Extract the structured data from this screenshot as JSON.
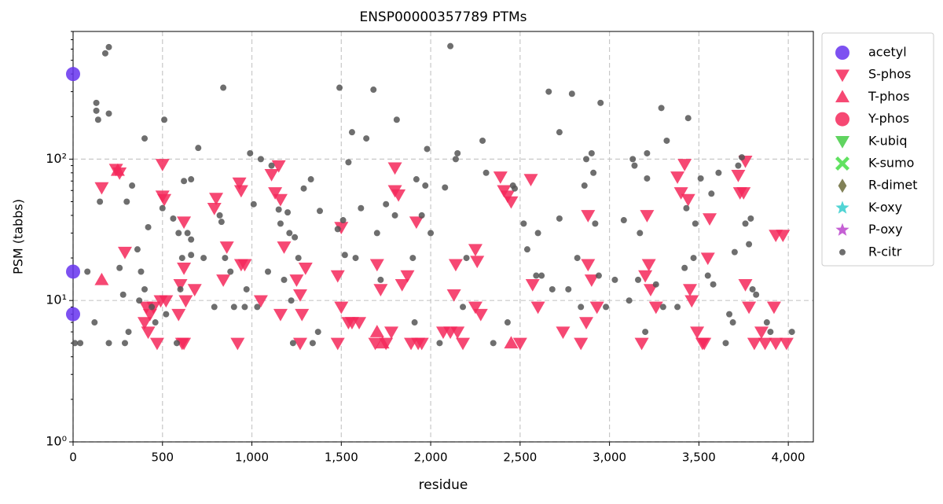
{
  "chart_data": {
    "type": "scatter",
    "title": "ENSP00000357789 PTMs",
    "x_label": "residue",
    "y_label": "PSM (tabbs)",
    "yscale": "log",
    "grid": true,
    "legend": "outside upper right",
    "xlim": [
      0,
      4140
    ],
    "ylim": [
      1,
      800
    ],
    "xticks": [
      0,
      500,
      {
        "value": 1000,
        "label": "1,000"
      },
      {
        "value": 1500,
        "label": "1,500"
      },
      {
        "value": 2000,
        "label": "2,000"
      },
      {
        "value": 2500,
        "label": "2,500"
      },
      {
        "value": 3000,
        "label": "3,000"
      },
      {
        "value": 3500,
        "label": "3,500"
      },
      {
        "value": 4000,
        "label": "4,000"
      }
    ],
    "yticks": [
      {
        "value": 1,
        "label": "10⁰"
      },
      {
        "value": 10,
        "label": "10¹"
      },
      {
        "value": 100,
        "label": "10²"
      }
    ],
    "series": [
      {
        "name": "acetyl",
        "color": "#6633ee",
        "marker": "circle",
        "x": [
          0,
          0,
          0
        ],
        "values": [
          400,
          16,
          8
        ]
      },
      {
        "name": "S-phos",
        "color": "#f5285a",
        "marker": "triangle-down",
        "x": [
          160,
          240,
          260,
          290,
          400,
          410,
          420,
          430,
          450,
          470,
          490,
          500,
          500,
          510,
          520,
          590,
          600,
          610,
          620,
          620,
          630,
          620,
          680,
          800,
          790,
          840,
          860,
          920,
          930,
          940,
          940,
          960,
          1050,
          1110,
          1130,
          1150,
          1160,
          1180,
          1160,
          1250,
          1270,
          1270,
          1280,
          1300,
          1480,
          1480,
          1500,
          1500,
          1540,
          1560,
          1600,
          1690,
          1700,
          1720,
          1750,
          1780,
          1800,
          1800,
          1820,
          1840,
          1870,
          1890,
          1920,
          1930,
          1950,
          2070,
          2110,
          2130,
          2140,
          2150,
          2180,
          2250,
          2250,
          2260,
          2280,
          2390,
          2410,
          2430,
          2450,
          2500,
          2560,
          2570,
          2600,
          2740,
          2840,
          2870,
          2880,
          2900,
          2880,
          2930,
          3180,
          3200,
          3210,
          3220,
          3230,
          3260,
          3380,
          3400,
          3420,
          3440,
          3450,
          3460,
          3490,
          3520,
          3530,
          3550,
          3560,
          3720,
          3730,
          3750,
          3760,
          3760,
          3780,
          3810,
          3850,
          3870,
          3920,
          3930,
          3930,
          3970,
          3990
        ],
        "values": [
          63,
          85,
          80,
          22,
          7,
          9,
          6,
          8,
          9,
          5,
          10,
          92,
          55,
          52,
          10,
          8,
          13,
          5,
          5,
          36,
          10,
          17,
          12,
          53,
          45,
          14,
          24,
          5,
          68,
          60,
          18,
          18,
          10,
          78,
          58,
          90,
          52,
          24,
          8,
          14,
          5,
          11,
          8,
          17,
          5,
          15,
          9,
          33,
          7,
          7,
          7,
          5,
          18,
          12,
          5,
          6,
          87,
          60,
          56,
          13,
          15,
          5,
          36,
          5,
          5,
          6,
          6,
          11,
          18,
          6,
          5,
          23,
          9,
          19,
          8,
          75,
          60,
          55,
          50,
          5,
          72,
          13,
          9,
          6,
          5,
          7,
          18,
          14,
          40,
          9,
          5,
          15,
          40,
          18,
          12,
          9,
          75,
          58,
          92,
          52,
          12,
          10,
          6,
          5,
          5,
          20,
          38,
          77,
          58,
          58,
          13,
          97,
          9,
          5,
          6,
          5,
          9,
          5,
          29,
          29,
          5
        ]
      },
      {
        "name": "T-phos",
        "color": "#f5285a",
        "marker": "triangle-up",
        "x": [
          160,
          250,
          1700,
          1730,
          2450
        ],
        "values": [
          14,
          83,
          6,
          5,
          5
        ]
      },
      {
        "name": "Y-phos",
        "color": "#f5285a",
        "marker": "circle",
        "x": [],
        "values": []
      },
      {
        "name": "K-ubiq",
        "color": "#44cc44",
        "marker": "triangle-down",
        "x": [],
        "values": []
      },
      {
        "name": "K-sumo",
        "color": "#44dd44",
        "marker": "x",
        "x": [],
        "values": []
      },
      {
        "name": "R-dimet",
        "color": "#6b6b3a",
        "marker": "diamond",
        "x": [],
        "values": []
      },
      {
        "name": "K-oxy",
        "color": "#33cccc",
        "marker": "star",
        "x": [],
        "values": []
      },
      {
        "name": "P-oxy",
        "color": "#bb44cc",
        "marker": "star",
        "x": [],
        "values": []
      },
      {
        "name": "R-citr",
        "color": "#555555",
        "marker": "dot",
        "x": [
          10,
          40,
          80,
          120,
          130,
          130,
          140,
          150,
          180,
          200,
          200,
          200,
          260,
          280,
          290,
          300,
          310,
          330,
          360,
          370,
          380,
          400,
          400,
          420,
          440,
          460,
          500,
          510,
          520,
          560,
          580,
          590,
          600,
          610,
          620,
          640,
          660,
          660,
          660,
          700,
          730,
          790,
          820,
          830,
          840,
          850,
          880,
          900,
          960,
          970,
          990,
          1010,
          1030,
          1050,
          1090,
          1110,
          1150,
          1160,
          1180,
          1200,
          1210,
          1220,
          1230,
          1240,
          1260,
          1290,
          1330,
          1340,
          1370,
          1380,
          1480,
          1490,
          1510,
          1520,
          1540,
          1560,
          1580,
          1610,
          1640,
          1680,
          1700,
          1720,
          1750,
          1800,
          1810,
          1900,
          1910,
          1920,
          1950,
          1970,
          1980,
          2000,
          2050,
          2080,
          2110,
          2140,
          2150,
          2180,
          2200,
          2290,
          2310,
          2350,
          2430,
          2460,
          2470,
          2520,
          2540,
          2590,
          2600,
          2620,
          2660,
          2680,
          2720,
          2720,
          2770,
          2790,
          2820,
          2840,
          2860,
          2870,
          2900,
          2910,
          2920,
          2940,
          2950,
          2980,
          3030,
          3080,
          3110,
          3130,
          3140,
          3160,
          3170,
          3200,
          3210,
          3210,
          3260,
          3290,
          3300,
          3320,
          3380,
          3420,
          3430,
          3440,
          3470,
          3480,
          3510,
          3550,
          3570,
          3580,
          3610,
          3650,
          3670,
          3690,
          3700,
          3720,
          3740,
          3760,
          3780,
          3790,
          3800,
          3820,
          3880,
          3900,
          4020
        ],
        "values": [
          5,
          5,
          16,
          7,
          250,
          220,
          190,
          50,
          560,
          620,
          210,
          5,
          17,
          11,
          5,
          50,
          6,
          65,
          23,
          10,
          16,
          12,
          140,
          33,
          9,
          7,
          45,
          190,
          8,
          38,
          5,
          30,
          12,
          20,
          70,
          30,
          27,
          72,
          21,
          120,
          20,
          9,
          40,
          36,
          320,
          20,
          16,
          9,
          9,
          12,
          110,
          48,
          9,
          100,
          16,
          90,
          44,
          35,
          14,
          42,
          30,
          10,
          5,
          28,
          20,
          62,
          72,
          5,
          6,
          43,
          32,
          320,
          37,
          21,
          95,
          155,
          20,
          45,
          140,
          310,
          30,
          14,
          48,
          40,
          190,
          20,
          7,
          72,
          40,
          65,
          118,
          30,
          5,
          63,
          630,
          100,
          110,
          9,
          20,
          135,
          80,
          5,
          7,
          65,
          62,
          35,
          23,
          15,
          30,
          15,
          300,
          12,
          155,
          38,
          12,
          290,
          20,
          9,
          65,
          100,
          110,
          80,
          35,
          15,
          250,
          9,
          14,
          37,
          10,
          100,
          90,
          14,
          30,
          6,
          110,
          73,
          13,
          230,
          9,
          135,
          9,
          17,
          45,
          195,
          20,
          35,
          73,
          15,
          57,
          13,
          80,
          5,
          8,
          7,
          22,
          90,
          103,
          35,
          25,
          38,
          12,
          11,
          7,
          6,
          6
        ]
      }
    ]
  }
}
